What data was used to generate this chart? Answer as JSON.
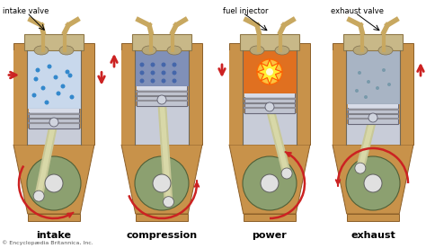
{
  "bg_color": "#f2efe8",
  "stage_labels": [
    "intake",
    "compression",
    "power",
    "exhaust"
  ],
  "top_labels": [
    "intake valve",
    "",
    "fuel injector",
    "exhaust valve"
  ],
  "copyright": "© Encyclopædia Britannica, Inc.",
  "body_color": "#c8924a",
  "body_edge": "#8b5e28",
  "cyl_wall_color": "#c0b898",
  "cyl_interior_color": "#d0d8e8",
  "compressed_color": "#8899cc",
  "fire_color": "#e87020",
  "exhaust_color": "#b0b8c8",
  "piston_color": "#b8bcc8",
  "piston_edge": "#787888",
  "rod_color": "#c8c898",
  "crank_color": "#8ca068",
  "crank_edge": "#506038",
  "blue_dot_color": "#3388cc",
  "exhaust_dot_color": "#7899aa",
  "arrow_color": "#cc2222",
  "valve_color": "#c8a860",
  "valve_edge": "#907840",
  "centers": [
    60,
    180,
    300,
    415
  ],
  "white_bg": "#ffffff"
}
